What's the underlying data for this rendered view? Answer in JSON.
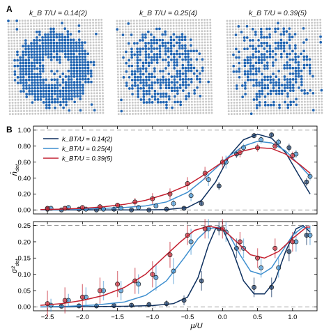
{
  "panel_a": {
    "letter": "A",
    "snapshots": [
      {
        "label": "k_B T/U = 0.14(2)",
        "kind": "ring"
      },
      {
        "label": "k_B T/U = 0.25(4)",
        "kind": "mid"
      },
      {
        "label": "k_B T/U = 0.39(5)",
        "kind": "hot"
      }
    ],
    "colors": {
      "occupied": "#1f63b0",
      "empty": "#c8c8c8"
    }
  },
  "panel_b": {
    "letter": "B",
    "x_label": "μ/U",
    "x_ticks": [
      "−2.5",
      "−2.0",
      "−1.5",
      "−1.0",
      "−0.5",
      "0.0",
      "0.5",
      "1.0"
    ]
  },
  "chart_data": [
    {
      "type": "line",
      "title": "",
      "xlabel": "μ/U",
      "ylabel": "n̄_det",
      "xlim": [
        -2.7,
        1.35
      ],
      "ylim": [
        -0.05,
        1.05
      ],
      "yticks": [
        "0.00",
        "0.20",
        "0.40",
        "0.60",
        "0.80",
        "1.00"
      ],
      "ref_lines": [
        0,
        1
      ],
      "legend_position": "top-left",
      "series": [
        {
          "name": "k_BT/U = 0.14(2)",
          "color": "#0d2f5e",
          "x": [
            -2.5,
            -2.3,
            -2.05,
            -1.8,
            -1.55,
            -1.3,
            -1.05,
            -0.8,
            -0.55,
            -0.3,
            -0.05,
            0.2,
            0.45,
            0.7,
            0.95,
            1.2
          ],
          "y": [
            0.01,
            0.0,
            0.01,
            0.0,
            0.01,
            0.0,
            0.0,
            0.01,
            0.02,
            0.08,
            0.3,
            0.7,
            0.93,
            0.94,
            0.78,
            0.35
          ],
          "err": [
            0.01,
            0.01,
            0.01,
            0.01,
            0.01,
            0.01,
            0.01,
            0.01,
            0.02,
            0.03,
            0.05,
            0.05,
            0.03,
            0.03,
            0.05,
            0.05
          ],
          "curve_x": [
            -2.6,
            -2.3,
            -2.0,
            -1.7,
            -1.4,
            -1.1,
            -0.8,
            -0.5,
            -0.3,
            -0.1,
            0.1,
            0.3,
            0.5,
            0.7,
            0.9,
            1.1,
            1.25
          ],
          "curve_y": [
            0.0,
            0.0,
            0.0,
            0.0,
            0.0,
            0.0,
            0.005,
            0.03,
            0.12,
            0.35,
            0.68,
            0.88,
            0.95,
            0.9,
            0.72,
            0.42,
            0.2
          ]
        },
        {
          "name": "k_BT/U = 0.25(4)",
          "color": "#3e8fcf",
          "x": [
            -2.45,
            -2.2,
            -1.95,
            -1.7,
            -1.45,
            -1.2,
            -0.95,
            -0.7,
            -0.45,
            -0.2,
            0.05,
            0.3,
            0.55,
            0.8,
            1.05,
            1.25
          ],
          "y": [
            0.02,
            0.03,
            0.01,
            0.01,
            0.02,
            0.03,
            0.05,
            0.08,
            0.18,
            0.38,
            0.6,
            0.78,
            0.88,
            0.85,
            0.7,
            0.42
          ],
          "err": [
            0.02,
            0.02,
            0.02,
            0.02,
            0.02,
            0.03,
            0.03,
            0.05,
            0.07,
            0.08,
            0.08,
            0.05,
            0.05,
            0.04,
            0.05,
            0.05
          ],
          "curve_x": [
            -2.6,
            -2.3,
            -2.0,
            -1.7,
            -1.4,
            -1.1,
            -0.8,
            -0.5,
            -0.3,
            -0.1,
            0.1,
            0.3,
            0.5,
            0.7,
            0.9,
            1.1,
            1.25
          ],
          "curve_y": [
            0.0,
            0.005,
            0.01,
            0.02,
            0.03,
            0.05,
            0.1,
            0.22,
            0.36,
            0.52,
            0.68,
            0.8,
            0.86,
            0.84,
            0.74,
            0.56,
            0.42
          ]
        },
        {
          "name": "k_BT/U = 0.39(5)",
          "color": "#c42030",
          "x": [
            -2.5,
            -2.25,
            -2.0,
            -1.75,
            -1.5,
            -1.25,
            -1.0,
            -0.75,
            -0.5,
            -0.25,
            0.0,
            0.25,
            0.5,
            0.75,
            1.0
          ],
          "y": [
            0.02,
            0.02,
            0.03,
            0.04,
            0.06,
            0.1,
            0.14,
            0.2,
            0.33,
            0.46,
            0.6,
            0.72,
            0.78,
            0.8,
            0.68
          ],
          "err": [
            0.02,
            0.02,
            0.02,
            0.03,
            0.03,
            0.05,
            0.07,
            0.07,
            0.08,
            0.08,
            0.07,
            0.06,
            0.05,
            0.05,
            0.05
          ],
          "curve_x": [
            -2.6,
            -2.3,
            -2.0,
            -1.7,
            -1.4,
            -1.1,
            -0.8,
            -0.5,
            -0.3,
            -0.1,
            0.1,
            0.3,
            0.5,
            0.7,
            0.9,
            1.1,
            1.25
          ],
          "curve_y": [
            0.005,
            0.01,
            0.02,
            0.04,
            0.07,
            0.12,
            0.2,
            0.31,
            0.42,
            0.54,
            0.66,
            0.74,
            0.78,
            0.77,
            0.7,
            0.57,
            0.46
          ]
        }
      ]
    },
    {
      "type": "line",
      "title": "",
      "xlabel": "μ/U",
      "ylabel": "σ²_det",
      "xlim": [
        -2.7,
        1.35
      ],
      "ylim": [
        -0.012,
        0.262
      ],
      "yticks": [
        "0.00",
        "0.05",
        "0.10",
        "0.15",
        "0.20",
        "0.25"
      ],
      "ref_lines": [
        0,
        0.25
      ],
      "series": [
        {
          "name": "k_BT/U = 0.14(2)",
          "color": "#0d2f5e",
          "x": [
            -2.3,
            -2.05,
            -1.8,
            -1.55,
            -1.3,
            -1.05,
            -0.8,
            -0.55,
            -0.3,
            -0.05,
            0.2,
            0.45,
            0.7,
            0.95,
            1.2
          ],
          "y": [
            0.002,
            0.003,
            0.003,
            0.004,
            0.005,
            0.007,
            0.01,
            0.02,
            0.08,
            0.24,
            0.18,
            0.06,
            0.06,
            0.17,
            0.22
          ],
          "err": [
            0.005,
            0.005,
            0.006,
            0.006,
            0.007,
            0.008,
            0.01,
            0.015,
            0.03,
            0.02,
            0.03,
            0.03,
            0.03,
            0.03,
            0.03
          ],
          "curve_x": [
            -2.6,
            -2.2,
            -1.8,
            -1.4,
            -1.0,
            -0.7,
            -0.5,
            -0.35,
            -0.2,
            -0.1,
            0.0,
            0.15,
            0.3,
            0.45,
            0.6,
            0.75,
            0.9,
            1.05,
            1.15,
            1.25
          ],
          "curve_y": [
            0.0,
            0.0,
            0.001,
            0.002,
            0.004,
            0.01,
            0.03,
            0.09,
            0.19,
            0.24,
            0.24,
            0.17,
            0.08,
            0.04,
            0.04,
            0.08,
            0.17,
            0.24,
            0.25,
            0.23
          ]
        },
        {
          "name": "k_BT/U = 0.25(4)",
          "color": "#3e8fcf",
          "x": [
            -2.45,
            -2.2,
            -1.95,
            -1.7,
            -1.45,
            -1.2,
            -0.95,
            -0.7,
            -0.45,
            -0.2,
            0.05,
            0.3,
            0.55,
            0.8,
            1.05,
            1.25
          ],
          "y": [
            0.005,
            0.02,
            0.03,
            0.05,
            0.05,
            0.07,
            0.09,
            0.11,
            0.2,
            0.24,
            0.23,
            0.18,
            0.12,
            0.12,
            0.2,
            0.22
          ],
          "err": [
            0.02,
            0.02,
            0.03,
            0.03,
            0.03,
            0.03,
            0.04,
            0.04,
            0.04,
            0.03,
            0.03,
            0.03,
            0.03,
            0.03,
            0.03,
            0.03
          ],
          "curve_x": [
            -2.6,
            -2.2,
            -1.8,
            -1.4,
            -1.1,
            -0.8,
            -0.55,
            -0.35,
            -0.2,
            -0.05,
            0.1,
            0.25,
            0.4,
            0.55,
            0.7,
            0.85,
            1.0,
            1.15,
            1.25
          ],
          "curve_y": [
            0.0,
            0.002,
            0.006,
            0.015,
            0.035,
            0.08,
            0.15,
            0.21,
            0.24,
            0.245,
            0.22,
            0.16,
            0.11,
            0.1,
            0.12,
            0.17,
            0.22,
            0.245,
            0.24
          ]
        },
        {
          "name": "k_BT/U = 0.39(5)",
          "color": "#c42030",
          "x": [
            -2.5,
            -2.25,
            -2.0,
            -1.75,
            -1.5,
            -1.25,
            -1.0,
            -0.75,
            -0.5,
            -0.25,
            0.0,
            0.25,
            0.5,
            0.75,
            1.0
          ],
          "y": [
            0.01,
            0.02,
            0.03,
            0.05,
            0.07,
            0.08,
            0.1,
            0.16,
            0.22,
            0.24,
            0.24,
            0.2,
            0.15,
            0.18,
            0.2
          ],
          "err": [
            0.04,
            0.04,
            0.04,
            0.04,
            0.04,
            0.04,
            0.04,
            0.04,
            0.03,
            0.03,
            0.03,
            0.03,
            0.03,
            0.03,
            0.03
          ],
          "curve_x": [
            -2.6,
            -2.3,
            -2.0,
            -1.7,
            -1.4,
            -1.1,
            -0.8,
            -0.6,
            -0.4,
            -0.2,
            0.0,
            0.2,
            0.4,
            0.6,
            0.8,
            1.0,
            1.2,
            1.25
          ],
          "curve_y": [
            0.005,
            0.01,
            0.02,
            0.035,
            0.06,
            0.1,
            0.16,
            0.2,
            0.235,
            0.248,
            0.24,
            0.2,
            0.16,
            0.15,
            0.17,
            0.21,
            0.245,
            0.245
          ]
        }
      ]
    }
  ]
}
